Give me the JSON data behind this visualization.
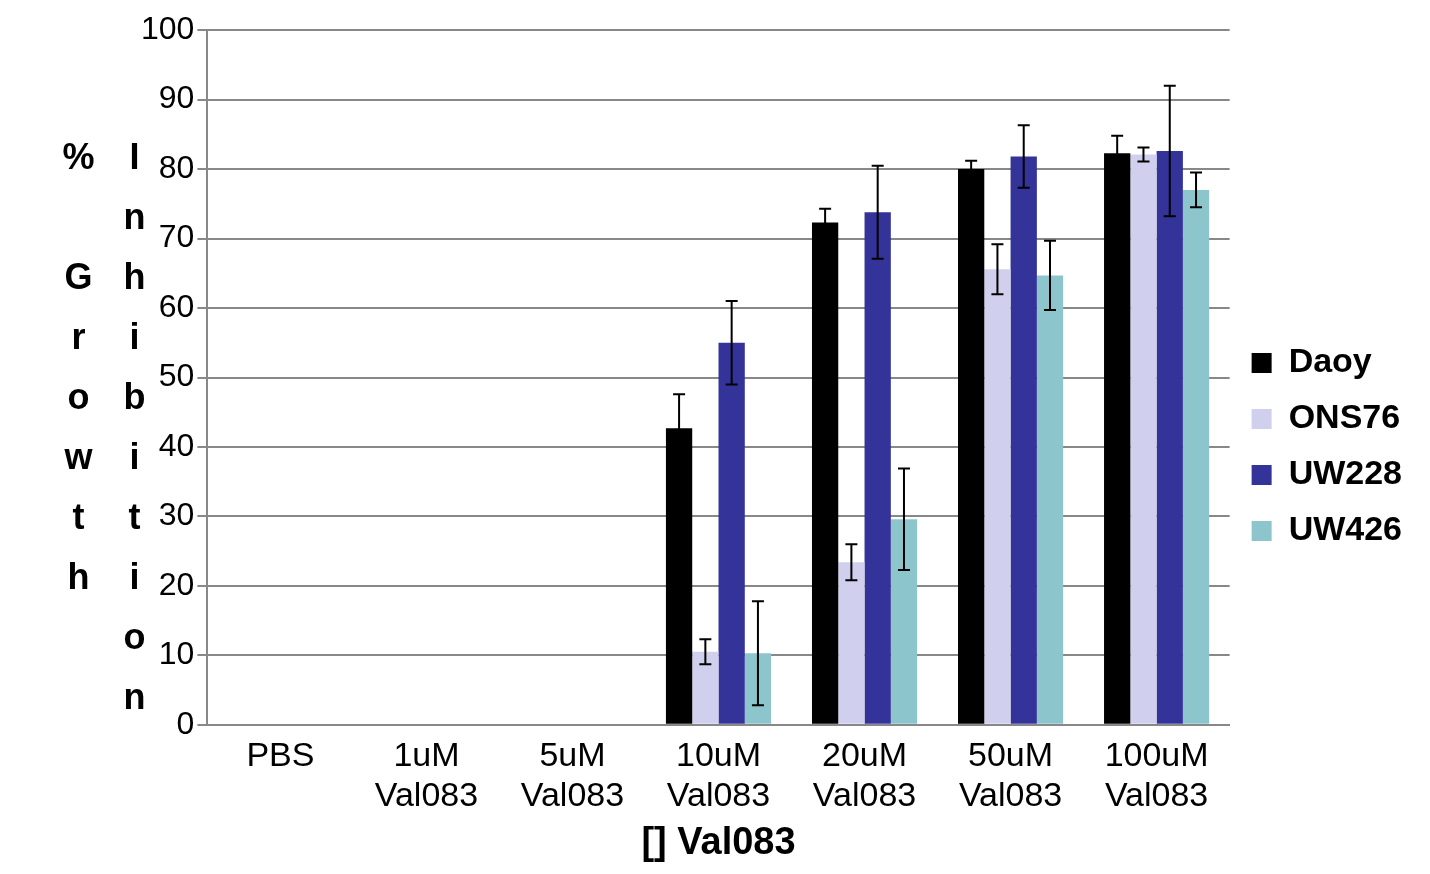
{
  "chart_data": {
    "type": "bar",
    "xlabel": "[] Val083",
    "ylabel": "% Growth Inhibition",
    "categories": [
      "PBS",
      "1uM Val083",
      "5uM Val083",
      "10uM Val083",
      "20uM Val083",
      "50uM Val083",
      "100uM Val083"
    ],
    "series": [
      {
        "name": "Daoy",
        "color": "#000000",
        "values": [
          0,
          0,
          0,
          42.7,
          72.3,
          80,
          82.3
        ],
        "errors": [
          null,
          null,
          null,
          4.9,
          2,
          1.2,
          2.5
        ]
      },
      {
        "name": "ONS76",
        "color": "#d0d0ee",
        "values": [
          0,
          0,
          0,
          10.5,
          23.4,
          65.6,
          82.1
        ],
        "errors": [
          null,
          null,
          null,
          1.8,
          2.6,
          3.6,
          1
        ]
      },
      {
        "name": "UW228",
        "color": "#343399",
        "values": [
          0,
          0,
          0,
          55,
          73.8,
          81.8,
          82.6
        ],
        "errors": [
          null,
          null,
          null,
          6,
          6.7,
          4.5,
          9.4
        ]
      },
      {
        "name": "UW426",
        "color": "#8cc6cc",
        "values": [
          0,
          0,
          0,
          10.3,
          29.6,
          64.7,
          77
        ],
        "errors": [
          null,
          null,
          null,
          7.5,
          7.3,
          5,
          2.5
        ]
      }
    ],
    "ylim": [
      0,
      100
    ],
    "yticks": [
      0,
      10,
      20,
      30,
      40,
      50,
      60,
      70,
      80,
      90,
      100
    ],
    "grid": "y",
    "legend": "right"
  }
}
